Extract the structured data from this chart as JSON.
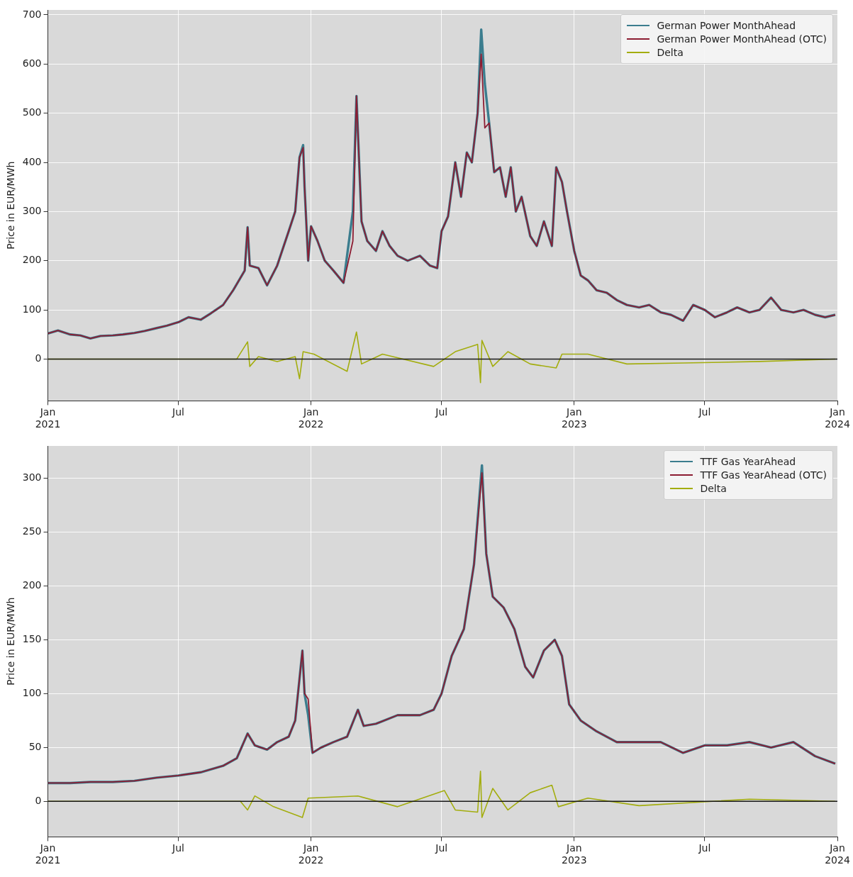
{
  "chart_data": [
    {
      "type": "line",
      "ylabel": "Price in EUR/MWh",
      "legend": "top right",
      "grid": true,
      "marker": "none",
      "line_style": "solid",
      "xlim": [
        "2021-01",
        "2024-01"
      ],
      "ylim": [
        -85,
        710
      ],
      "yticks": [
        0,
        100,
        200,
        300,
        400,
        500,
        600,
        700
      ],
      "xticks": [
        {
          "value": "2021-01",
          "label": "Jan\n2021"
        },
        {
          "value": "2021-07",
          "label": "Jul"
        },
        {
          "value": "2022-01",
          "label": "Jan\n2022"
        },
        {
          "value": "2022-07",
          "label": "Jul"
        },
        {
          "value": "2023-01",
          "label": "Jan\n2023"
        },
        {
          "value": "2023-07",
          "label": "Jul"
        },
        {
          "value": "2024-01",
          "label": "Jan\n2024"
        }
      ],
      "ref_lines": [
        {
          "axis": "y",
          "value": 0,
          "color": "#1a1a1a"
        }
      ],
      "x": [
        "2021-01-01",
        "2021-01-15",
        "2021-02-01",
        "2021-02-15",
        "2021-03-01",
        "2021-03-15",
        "2021-04-01",
        "2021-04-15",
        "2021-05-01",
        "2021-05-15",
        "2021-06-01",
        "2021-06-15",
        "2021-07-01",
        "2021-07-15",
        "2021-08-01",
        "2021-08-15",
        "2021-09-01",
        "2021-09-15",
        "2021-10-01",
        "2021-10-05",
        "2021-10-08",
        "2021-10-20",
        "2021-11-01",
        "2021-11-15",
        "2021-12-01",
        "2021-12-10",
        "2021-12-16",
        "2021-12-21",
        "2021-12-23",
        "2021-12-28",
        "2022-01-01",
        "2022-01-10",
        "2022-01-20",
        "2022-02-01",
        "2022-02-15",
        "2022-02-28",
        "2022-03-05",
        "2022-03-12",
        "2022-03-20",
        "2022-04-01",
        "2022-04-10",
        "2022-04-20",
        "2022-05-01",
        "2022-05-15",
        "2022-06-01",
        "2022-06-15",
        "2022-06-25",
        "2022-07-01",
        "2022-07-10",
        "2022-07-20",
        "2022-07-28",
        "2022-08-05",
        "2022-08-12",
        "2022-08-20",
        "2022-08-25",
        "2022-08-30",
        "2022-09-05",
        "2022-09-12",
        "2022-09-20",
        "2022-09-28",
        "2022-10-05",
        "2022-10-12",
        "2022-10-20",
        "2022-11-01",
        "2022-11-10",
        "2022-11-20",
        "2022-12-01",
        "2022-12-07",
        "2022-12-15",
        "2022-12-22",
        "2023-01-01",
        "2023-01-10",
        "2023-01-20",
        "2023-02-01",
        "2023-02-15",
        "2023-03-01",
        "2023-03-15",
        "2023-04-01",
        "2023-04-15",
        "2023-05-01",
        "2023-05-15",
        "2023-06-01",
        "2023-06-15",
        "2023-07-01",
        "2023-07-15",
        "2023-08-01",
        "2023-08-15",
        "2023-09-01",
        "2023-09-15",
        "2023-10-01",
        "2023-10-15",
        "2023-11-01",
        "2023-11-15",
        "2023-12-01",
        "2023-12-15",
        "2023-12-29"
      ],
      "series": [
        {
          "name": "German Power MonthAhead",
          "color": "#3b7d8e",
          "values": [
            52,
            58,
            50,
            48,
            42,
            47,
            48,
            50,
            53,
            57,
            63,
            68,
            75,
            85,
            80,
            93,
            110,
            140,
            180,
            268,
            190,
            185,
            150,
            190,
            260,
            300,
            410,
            435,
            350,
            200,
            270,
            240,
            200,
            180,
            155,
            300,
            535,
            280,
            240,
            220,
            260,
            230,
            210,
            200,
            210,
            190,
            185,
            260,
            290,
            400,
            330,
            420,
            400,
            500,
            670,
            560,
            480,
            380,
            390,
            330,
            390,
            300,
            330,
            250,
            230,
            280,
            230,
            390,
            360,
            300,
            220,
            170,
            160,
            140,
            135,
            120,
            110,
            105,
            110,
            95,
            90,
            78,
            110,
            100,
            85,
            95,
            105,
            95,
            100,
            125,
            100,
            95,
            100,
            90,
            85,
            90
          ]
        },
        {
          "name": "German Power MonthAhead (OTC)",
          "color": "#8c1c32",
          "values": [
            52,
            58,
            50,
            48,
            42,
            47,
            48,
            50,
            53,
            57,
            63,
            68,
            75,
            85,
            80,
            93,
            110,
            140,
            180,
            268,
            190,
            185,
            150,
            190,
            260,
            300,
            410,
            430,
            350,
            200,
            270,
            240,
            200,
            180,
            155,
            240,
            535,
            280,
            240,
            220,
            260,
            230,
            210,
            200,
            210,
            190,
            185,
            260,
            290,
            400,
            330,
            420,
            400,
            500,
            620,
            470,
            480,
            380,
            390,
            330,
            390,
            300,
            330,
            250,
            230,
            280,
            230,
            390,
            360,
            300,
            220,
            170,
            160,
            140,
            135,
            120,
            110,
            105,
            110,
            95,
            90,
            78,
            110,
            100,
            85,
            95,
            105,
            95,
            100,
            125,
            100,
            95,
            100,
            90,
            85,
            90
          ]
        },
        {
          "name": "Delta",
          "color": "#a3ad0e",
          "x": [
            "2021-01-01",
            "2021-09-20",
            "2021-10-05",
            "2021-10-08",
            "2021-10-20",
            "2021-11-15",
            "2021-12-10",
            "2021-12-16",
            "2021-12-21",
            "2022-01-05",
            "2022-02-20",
            "2022-03-05",
            "2022-03-12",
            "2022-04-10",
            "2022-06-20",
            "2022-07-20",
            "2022-08-20",
            "2022-08-24",
            "2022-08-26",
            "2022-09-10",
            "2022-10-01",
            "2022-11-01",
            "2022-12-07",
            "2022-12-15",
            "2023-01-20",
            "2023-03-15",
            "2023-06-01",
            "2023-09-15",
            "2023-12-29"
          ],
          "values": [
            0,
            0,
            35,
            -15,
            5,
            -5,
            5,
            -40,
            15,
            10,
            -25,
            55,
            -10,
            10,
            -15,
            15,
            30,
            -48,
            38,
            -15,
            15,
            -10,
            -18,
            10,
            10,
            -10,
            -8,
            -5,
            0
          ]
        }
      ]
    },
    {
      "type": "line",
      "ylabel": "Price in EUR/MWh",
      "legend": "top right",
      "grid": true,
      "marker": "none",
      "line_style": "solid",
      "xlim": [
        "2021-01",
        "2024-01"
      ],
      "ylim": [
        -33,
        330
      ],
      "yticks": [
        0,
        50,
        100,
        150,
        200,
        250,
        300
      ],
      "xticks": [
        {
          "value": "2021-01",
          "label": "Jan\n2021"
        },
        {
          "value": "2021-07",
          "label": "Jul"
        },
        {
          "value": "2022-01",
          "label": "Jan\n2022"
        },
        {
          "value": "2022-07",
          "label": "Jul"
        },
        {
          "value": "2023-01",
          "label": "Jan\n2023"
        },
        {
          "value": "2023-07",
          "label": "Jul"
        },
        {
          "value": "2024-01",
          "label": "Jan\n2024"
        }
      ],
      "ref_lines": [
        {
          "axis": "y",
          "value": 0,
          "color": "#1a1a1a"
        }
      ],
      "x": [
        "2021-01-01",
        "2021-02-01",
        "2021-03-01",
        "2021-04-01",
        "2021-05-01",
        "2021-06-01",
        "2021-07-01",
        "2021-08-01",
        "2021-09-01",
        "2021-09-20",
        "2021-10-05",
        "2021-10-15",
        "2021-11-01",
        "2021-11-15",
        "2021-12-01",
        "2021-12-10",
        "2021-12-20",
        "2021-12-23",
        "2021-12-28",
        "2022-01-03",
        "2022-01-15",
        "2022-02-01",
        "2022-02-20",
        "2022-03-07",
        "2022-03-15",
        "2022-04-01",
        "2022-05-01",
        "2022-06-01",
        "2022-06-20",
        "2022-07-01",
        "2022-07-15",
        "2022-08-01",
        "2022-08-15",
        "2022-08-26",
        "2022-09-01",
        "2022-09-10",
        "2022-09-25",
        "2022-10-10",
        "2022-10-25",
        "2022-11-05",
        "2022-11-20",
        "2022-12-05",
        "2022-12-15",
        "2022-12-25",
        "2023-01-10",
        "2023-02-01",
        "2023-03-01",
        "2023-04-01",
        "2023-05-01",
        "2023-06-01",
        "2023-07-01",
        "2023-08-01",
        "2023-09-01",
        "2023-10-01",
        "2023-11-01",
        "2023-12-01",
        "2023-12-29"
      ],
      "series": [
        {
          "name": "TTF Gas YearAhead",
          "color": "#3b7d8e",
          "values": [
            17,
            17,
            18,
            18,
            19,
            22,
            24,
            27,
            33,
            40,
            63,
            52,
            48,
            55,
            60,
            75,
            140,
            100,
            80,
            45,
            50,
            55,
            60,
            85,
            70,
            72,
            80,
            80,
            85,
            100,
            135,
            160,
            220,
            312,
            230,
            190,
            180,
            160,
            125,
            115,
            140,
            150,
            135,
            90,
            75,
            65,
            55,
            55,
            55,
            45,
            52,
            52,
            55,
            50,
            55,
            42,
            35
          ]
        },
        {
          "name": "TTF Gas YearAhead (OTC)",
          "color": "#8c1c32",
          "values": [
            17,
            17,
            18,
            18,
            19,
            22,
            24,
            27,
            33,
            40,
            63,
            52,
            48,
            55,
            60,
            75,
            140,
            100,
            95,
            45,
            50,
            55,
            60,
            85,
            70,
            72,
            80,
            80,
            85,
            100,
            135,
            160,
            220,
            305,
            230,
            190,
            180,
            160,
            125,
            115,
            140,
            150,
            135,
            90,
            75,
            65,
            55,
            55,
            55,
            45,
            52,
            52,
            55,
            50,
            55,
            42,
            35
          ]
        },
        {
          "name": "Delta",
          "color": "#a3ad0e",
          "x": [
            "2021-01-01",
            "2021-09-25",
            "2021-10-05",
            "2021-10-15",
            "2021-11-10",
            "2021-12-20",
            "2021-12-28",
            "2022-03-07",
            "2022-05-01",
            "2022-07-05",
            "2022-07-20",
            "2022-08-20",
            "2022-08-24",
            "2022-08-26",
            "2022-09-10",
            "2022-10-01",
            "2022-11-01",
            "2022-12-01",
            "2022-12-10",
            "2023-01-20",
            "2023-04-01",
            "2023-09-01",
            "2023-12-29"
          ],
          "values": [
            0,
            0,
            -8,
            5,
            -5,
            -15,
            3,
            5,
            -5,
            10,
            -8,
            -10,
            28,
            -15,
            12,
            -8,
            8,
            15,
            -5,
            3,
            -4,
            2,
            0
          ]
        }
      ]
    }
  ]
}
